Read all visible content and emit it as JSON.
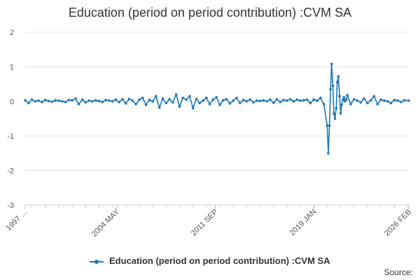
{
  "chart_data": {
    "type": "line",
    "title": "Education (period on period contribution) :CVM SA",
    "xlabel": "",
    "ylabel": "",
    "ylim": [
      -3,
      2
    ],
    "yticks": [
      2,
      1,
      0,
      -1,
      -2,
      -3
    ],
    "x_tick_labels": [
      "1997 …",
      "2004 MAY",
      "2011 SEP",
      "2019 JAN",
      "2026 FEB"
    ],
    "x_tick_dates": [
      1997.5,
      2004.33,
      2011.67,
      2019.0,
      2026.08
    ],
    "grid": true,
    "legend_position": "bottom",
    "color": "#1f77b4",
    "series": [
      {
        "name": "Education (period on period contribution) :CVM SA",
        "x": [
          1997.5,
          1997.75,
          1998.0,
          1998.25,
          1998.5,
          1998.75,
          1999.0,
          1999.25,
          1999.5,
          1999.75,
          2000.0,
          2000.25,
          2000.5,
          2000.75,
          2001.0,
          2001.25,
          2001.5,
          2001.75,
          2002.0,
          2002.25,
          2002.5,
          2002.75,
          2003.0,
          2003.25,
          2003.5,
          2003.75,
          2004.0,
          2004.25,
          2004.5,
          2004.75,
          2005.0,
          2005.25,
          2005.5,
          2005.75,
          2006.0,
          2006.25,
          2006.5,
          2006.75,
          2007.0,
          2007.25,
          2007.5,
          2007.75,
          2008.0,
          2008.25,
          2008.5,
          2008.75,
          2009.0,
          2009.25,
          2009.5,
          2009.75,
          2010.0,
          2010.25,
          2010.5,
          2010.75,
          2011.0,
          2011.25,
          2011.5,
          2011.75,
          2012.0,
          2012.25,
          2012.5,
          2012.75,
          2013.0,
          2013.25,
          2013.5,
          2013.75,
          2014.0,
          2014.25,
          2014.5,
          2014.75,
          2015.0,
          2015.25,
          2015.5,
          2015.75,
          2016.0,
          2016.25,
          2016.5,
          2016.75,
          2017.0,
          2017.25,
          2017.5,
          2017.75,
          2018.0,
          2018.25,
          2018.5,
          2018.75,
          2019.0,
          2019.25,
          2019.5,
          2019.75,
          2020.0,
          2020.08,
          2020.17,
          2020.25,
          2020.33,
          2020.42,
          2020.5,
          2020.58,
          2020.67,
          2020.75,
          2020.83,
          2020.92,
          2021.0,
          2021.08,
          2021.17,
          2021.25,
          2021.33,
          2021.42,
          2021.5,
          2021.75,
          2022.0,
          2022.25,
          2022.5,
          2022.75,
          2023.0,
          2023.25,
          2023.5,
          2023.75,
          2024.0,
          2024.25,
          2024.5,
          2024.75,
          2025.0,
          2025.25,
          2025.5,
          2025.75,
          2026.08
        ],
        "values": [
          0.03,
          -0.05,
          0.05,
          0.0,
          0.02,
          -0.02,
          0.04,
          0.01,
          -0.01,
          0.03,
          0.02,
          0.0,
          -0.02,
          0.04,
          0.03,
          0.08,
          -0.08,
          0.05,
          -0.03,
          0.02,
          0.0,
          0.03,
          0.01,
          -0.02,
          0.04,
          0.02,
          0.0,
          0.05,
          -0.02,
          0.06,
          -0.06,
          0.07,
          0.02,
          -0.08,
          0.05,
          0.1,
          -0.1,
          0.04,
          0.0,
          0.15,
          -0.18,
          0.08,
          -0.05,
          0.06,
          -0.03,
          0.2,
          -0.15,
          0.1,
          0.05,
          0.15,
          -0.2,
          0.07,
          -0.05,
          0.02,
          0.1,
          -0.08,
          0.05,
          0.12,
          -0.1,
          0.03,
          0.06,
          -0.06,
          0.02,
          0.1,
          -0.05,
          0.04,
          0.0,
          0.05,
          -0.03,
          0.02,
          0.01,
          0.03,
          0.0,
          0.05,
          -0.04,
          0.06,
          -0.02,
          0.04,
          0.02,
          0.06,
          0.0,
          0.05,
          0.02,
          0.03,
          0.05,
          -0.05,
          0.05,
          0.02,
          0.1,
          -0.08,
          -0.7,
          -1.5,
          -0.7,
          0.35,
          1.08,
          0.45,
          -0.35,
          -0.5,
          -0.2,
          0.55,
          0.72,
          0.15,
          -0.35,
          -0.1,
          0.05,
          0.12,
          0.0,
          0.05,
          0.18,
          -0.08,
          0.06,
          0.02,
          -0.03,
          0.08,
          -0.05,
          0.03,
          0.15,
          -0.08,
          0.05,
          0.02,
          0.0,
          -0.05,
          0.04,
          0.02,
          -0.02,
          0.03,
          0.02
        ]
      }
    ]
  },
  "source_label": "Source:"
}
